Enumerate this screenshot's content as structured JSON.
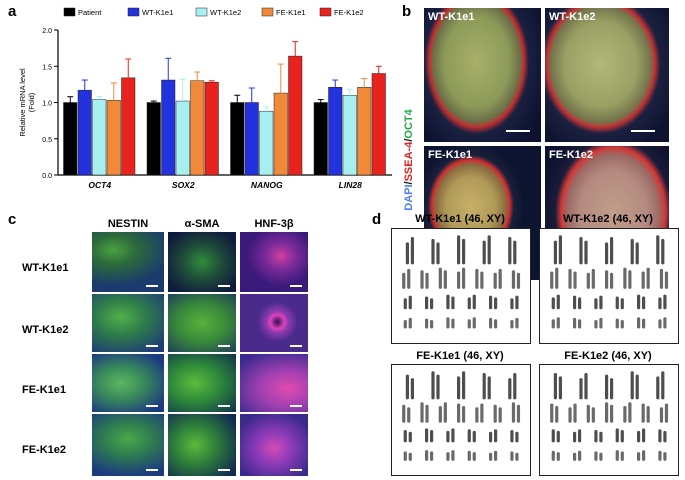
{
  "panels": {
    "a": {
      "letter": "a"
    },
    "b": {
      "letter": "b",
      "stain": {
        "dapi": "DAPI",
        "sep1": "/",
        "ssea4": "SSEA-4",
        "sep2": "/",
        "oct4": "OCT4"
      },
      "images": [
        {
          "label": "WT-K1e1"
        },
        {
          "label": "WT-K1e2"
        },
        {
          "label": "FE-K1e1"
        },
        {
          "label": "FE-K1e2"
        }
      ]
    },
    "c": {
      "letter": "c",
      "columns": [
        "NESTIN",
        "α-SMA",
        "HNF-3β"
      ],
      "rows": [
        "WT-K1e1",
        "WT-K1e2",
        "FE-K1e1",
        "FE-K1e2"
      ]
    },
    "d": {
      "letter": "d",
      "karyotypes": [
        {
          "title": "WT-K1e1 (46, XY)"
        },
        {
          "title": "WT-K1e2 (46, XY)"
        },
        {
          "title": "FE-K1e1 (46, XY)"
        },
        {
          "title": "FE-K1e2 (46, XY)"
        }
      ]
    }
  },
  "chart_data": {
    "type": "bar",
    "categories": [
      "OCT4",
      "SOX2",
      "NANOG",
      "LIN28"
    ],
    "ylabel_line1": "Relative mRNA level",
    "ylabel_line2": "(Fold)",
    "ylim": [
      0,
      2.0
    ],
    "yticks": [
      "0.0",
      "0.5",
      "1.0",
      "1.5",
      "2.0"
    ],
    "legend_placement": "top",
    "series": [
      {
        "name": "Patient",
        "color": "#000000",
        "values": [
          1.0,
          1.0,
          1.0,
          1.0
        ],
        "errors": [
          0.08,
          0.02,
          0.1,
          0.04
        ]
      },
      {
        "name": "WT-K1e1",
        "color": "#2233dd",
        "values": [
          1.17,
          1.31,
          1.0,
          1.21
        ],
        "errors": [
          0.14,
          0.3,
          0.2,
          0.1
        ]
      },
      {
        "name": "WT-K1e2",
        "color": "#a8f0f0",
        "values": [
          1.04,
          1.02,
          0.88,
          1.1
        ],
        "errors": [
          0.04,
          0.3,
          0.06,
          0.08
        ]
      },
      {
        "name": "FE-K1e1",
        "color": "#f08a3a",
        "values": [
          1.03,
          1.3,
          1.13,
          1.21
        ],
        "errors": [
          0.24,
          0.12,
          0.4,
          0.12
        ]
      },
      {
        "name": "FE-K1e2",
        "color": "#e8221c",
        "values": [
          1.34,
          1.28,
          1.64,
          1.4
        ],
        "errors": [
          0.26,
          0.02,
          0.2,
          0.1
        ]
      }
    ]
  }
}
